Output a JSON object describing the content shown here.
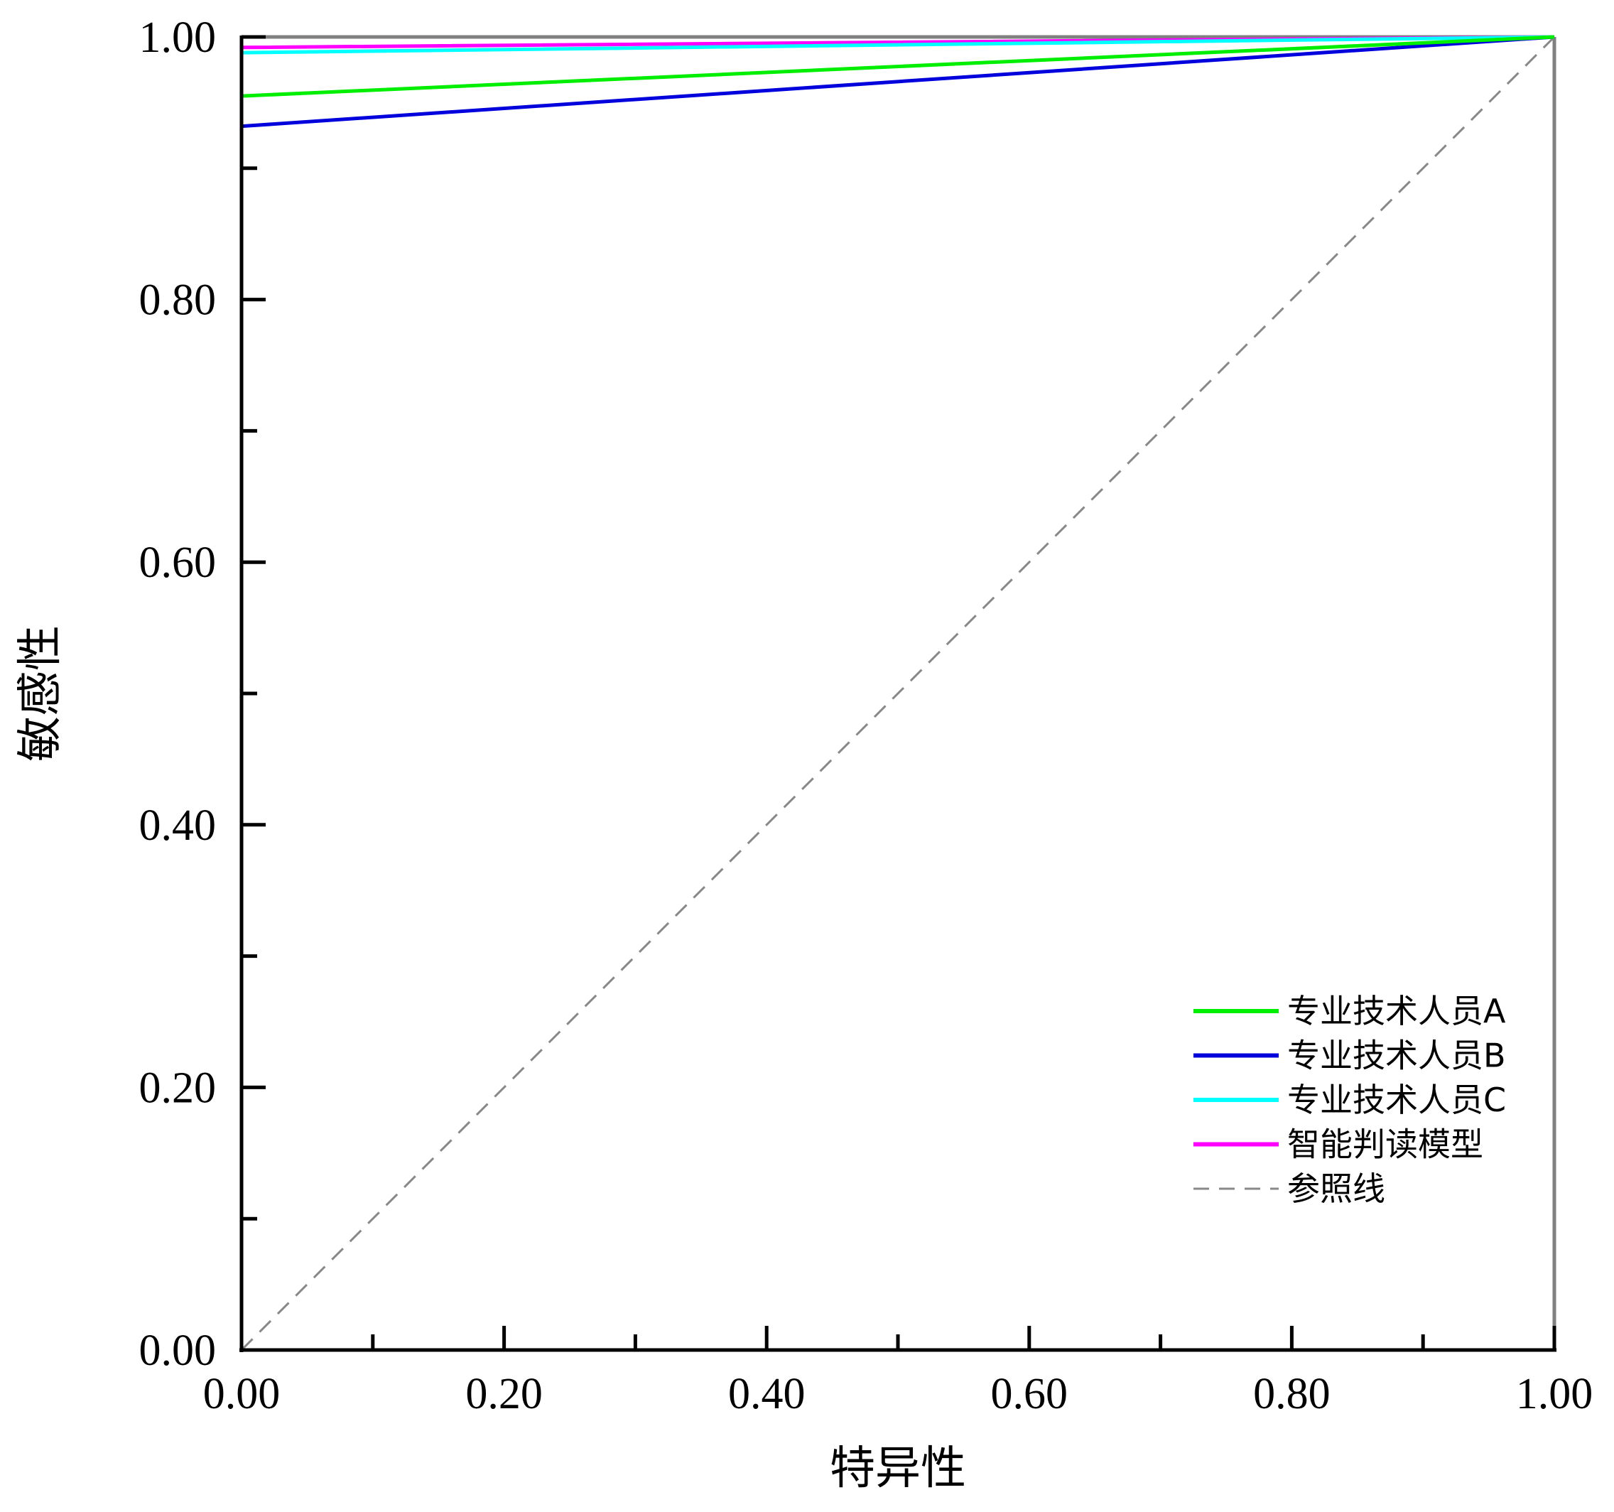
{
  "chart_data": {
    "type": "line",
    "title": "",
    "xlabel": "特异性",
    "ylabel": "敏感性",
    "xlim": [
      0,
      1
    ],
    "ylim": [
      0,
      1
    ],
    "x_ticks": [
      "0.00",
      "0.20",
      "0.40",
      "0.60",
      "0.80",
      "1.00"
    ],
    "y_ticks": [
      "0.00",
      "0.20",
      "0.40",
      "0.60",
      "0.80",
      "1.00"
    ],
    "grid": false,
    "legend_position": "bottom-right",
    "series": [
      {
        "name": "专业技术人员A",
        "color": "#00ee00",
        "dashed": false,
        "x": [
          0,
          0,
          1
        ],
        "y": [
          0,
          0.955,
          1
        ]
      },
      {
        "name": "专业技术人员B",
        "color": "#0000dd",
        "dashed": false,
        "x": [
          0,
          0,
          1
        ],
        "y": [
          0,
          0.932,
          1
        ]
      },
      {
        "name": "专业技术人员C",
        "color": "#00ffff",
        "dashed": false,
        "x": [
          0,
          0,
          1
        ],
        "y": [
          0,
          0.988,
          1
        ]
      },
      {
        "name": "智能判读模型",
        "color": "#ff00ff",
        "dashed": false,
        "x": [
          0,
          0,
          1
        ],
        "y": [
          0,
          0.992,
          1
        ]
      },
      {
        "name": "参照线",
        "color": "#888888",
        "dashed": true,
        "x": [
          0,
          1
        ],
        "y": [
          0,
          1
        ]
      }
    ]
  }
}
